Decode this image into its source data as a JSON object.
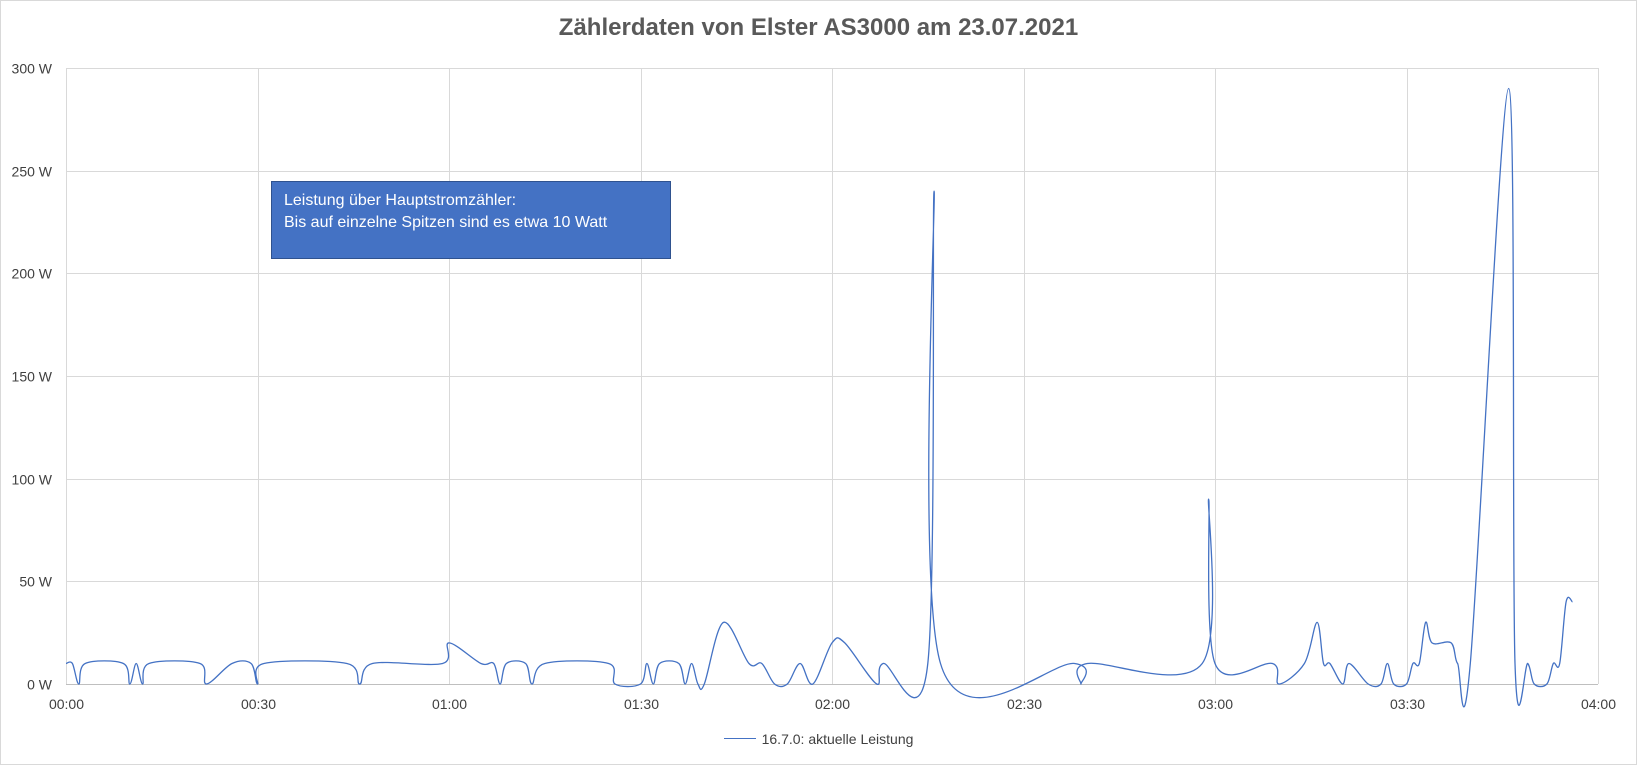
{
  "chart_data": {
    "type": "line",
    "title": "Zählerdaten von Elster AS3000 am 23.07.2021",
    "y_tick_labels": [
      "0 W",
      "50 W",
      "100 W",
      "150 W",
      "200 W",
      "250 W",
      "300 W"
    ],
    "y_ticks": [
      0,
      50,
      100,
      150,
      200,
      250,
      300
    ],
    "ylim": [
      0,
      300
    ],
    "x_tick_labels": [
      "00:00",
      "00:30",
      "01:00",
      "01:30",
      "02:00",
      "02:30",
      "03:00",
      "03:30",
      "04:00"
    ],
    "x_ticks": [
      0,
      30,
      60,
      90,
      120,
      150,
      180,
      210,
      240
    ],
    "xlim": [
      "00:00",
      "04:00"
    ],
    "grid": true,
    "legend_position": "bottom",
    "series": [
      {
        "name": "16.7.0: aktuelle Leistung",
        "color": "#4472c4",
        "points": [
          [
            "00:00",
            10
          ],
          [
            "00:01",
            10
          ],
          [
            "00:02",
            0
          ],
          [
            "00:03",
            10
          ],
          [
            "00:09",
            10
          ],
          [
            "00:10",
            0
          ],
          [
            "00:11",
            10
          ],
          [
            "00:12",
            0
          ],
          [
            "00:13",
            10
          ],
          [
            "00:21",
            10
          ],
          [
            "00:22",
            0
          ],
          [
            "00:26",
            10
          ],
          [
            "00:29",
            10
          ],
          [
            "00:30",
            0
          ],
          [
            "00:31",
            10
          ],
          [
            "00:44",
            10
          ],
          [
            "00:46",
            0
          ],
          [
            "00:48",
            10
          ],
          [
            "00:59",
            10
          ],
          [
            "01:00",
            20
          ],
          [
            "01:05",
            10
          ],
          [
            "01:07",
            10
          ],
          [
            "01:08",
            0
          ],
          [
            "01:09",
            10
          ],
          [
            "01:12",
            10
          ],
          [
            "01:13",
            0
          ],
          [
            "01:15",
            10
          ],
          [
            "01:25",
            10
          ],
          [
            "01:26",
            0
          ],
          [
            "01:30",
            0
          ],
          [
            "01:31",
            10
          ],
          [
            "01:32",
            0
          ],
          [
            "01:33",
            10
          ],
          [
            "01:36",
            10
          ],
          [
            "01:37",
            0
          ],
          [
            "01:38",
            10
          ],
          [
            "01:39",
            0
          ],
          [
            "01:40",
            0
          ],
          [
            "01:43",
            30
          ],
          [
            "01:47",
            10
          ],
          [
            "01:49",
            10
          ],
          [
            "01:51",
            0
          ],
          [
            "01:53",
            0
          ],
          [
            "01:55",
            10
          ],
          [
            "01:57",
            0
          ],
          [
            "02:00",
            20
          ],
          [
            "02:02",
            20
          ],
          [
            "02:07",
            0
          ],
          [
            "02:08",
            10
          ],
          [
            "02:15",
            10
          ],
          [
            "02:16",
            240
          ],
          [
            "02:17",
            10
          ],
          [
            "02:38",
            10
          ],
          [
            "02:39",
            0
          ],
          [
            "02:40",
            10
          ],
          [
            "02:58",
            10
          ],
          [
            "02:59",
            90
          ],
          [
            "03:00",
            10
          ],
          [
            "03:09",
            10
          ],
          [
            "03:10",
            0
          ],
          [
            "03:14",
            10
          ],
          [
            "03:16",
            30
          ],
          [
            "03:17",
            10
          ],
          [
            "03:18",
            10
          ],
          [
            "03:20",
            0
          ],
          [
            "03:21",
            10
          ],
          [
            "03:24",
            0
          ],
          [
            "03:26",
            0
          ],
          [
            "03:27",
            10
          ],
          [
            "03:28",
            0
          ],
          [
            "03:30",
            0
          ],
          [
            "03:31",
            10
          ],
          [
            "03:32",
            10
          ],
          [
            "03:33",
            30
          ],
          [
            "03:34",
            20
          ],
          [
            "03:37",
            20
          ],
          [
            "03:38",
            10
          ],
          [
            "03:40",
            10
          ],
          [
            "03:46",
            290
          ],
          [
            "03:47",
            10
          ],
          [
            "03:49",
            10
          ],
          [
            "03:50",
            0
          ],
          [
            "03:52",
            0
          ],
          [
            "03:53",
            10
          ],
          [
            "03:54",
            10
          ],
          [
            "03:55",
            40
          ],
          [
            "03:56",
            40
          ]
        ]
      }
    ]
  },
  "annotation": {
    "line1": "Leistung über Hauptstromzähler:",
    "line2": "Bis auf einzelne Spitzen sind es etwa 10 Watt"
  },
  "legend": {
    "label": "16.7.0: aktuelle Leistung"
  }
}
